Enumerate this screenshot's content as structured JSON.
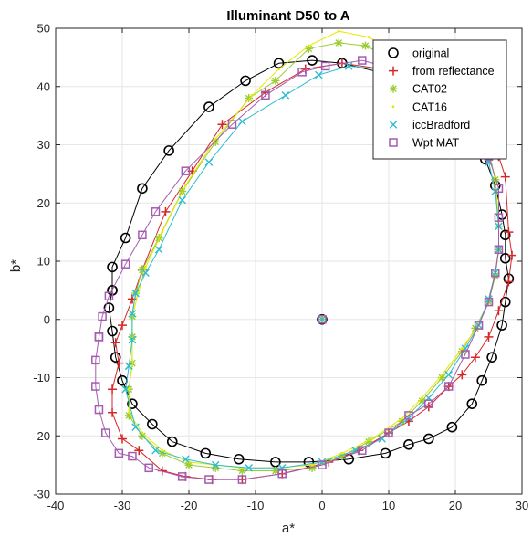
{
  "chart_data": {
    "type": "line",
    "title": "Illuminant D50 to A",
    "xlabel": "a*",
    "ylabel": "b*",
    "xlim": [
      -40,
      30
    ],
    "ylim": [
      -30,
      50
    ],
    "xticks": [
      -40,
      -30,
      -20,
      -10,
      0,
      10,
      20,
      30
    ],
    "yticks": [
      -30,
      -20,
      -10,
      0,
      10,
      20,
      30,
      40,
      50
    ],
    "grid": true,
    "legend_position": "top-right",
    "center_point": {
      "x": 0,
      "y": 0
    },
    "series": [
      {
        "name": "original",
        "color": "#000000",
        "marker": "circle",
        "points": [
          [
            -31.5,
            5
          ],
          [
            -31.5,
            9
          ],
          [
            -29.5,
            14
          ],
          [
            -27,
            22.5
          ],
          [
            -23,
            29
          ],
          [
            -17,
            36.5
          ],
          [
            -11.5,
            41
          ],
          [
            -6.5,
            44
          ],
          [
            -1.5,
            44.5
          ],
          [
            3,
            44
          ],
          [
            8.5,
            42.5
          ],
          [
            12.5,
            41
          ],
          [
            16,
            38
          ],
          [
            19.5,
            35
          ],
          [
            22,
            31
          ],
          [
            24.5,
            27.5
          ],
          [
            26,
            23
          ],
          [
            27,
            18
          ],
          [
            27.5,
            14.5
          ],
          [
            27.5,
            10.5
          ],
          [
            28,
            7
          ],
          [
            27.5,
            3
          ],
          [
            27,
            -1
          ],
          [
            25.5,
            -6.5
          ],
          [
            24,
            -10.5
          ],
          [
            22.5,
            -14.5
          ],
          [
            19.5,
            -18.5
          ],
          [
            16,
            -20.5
          ],
          [
            13,
            -21.5
          ],
          [
            9.5,
            -23
          ],
          [
            4,
            -24
          ],
          [
            -2,
            -24.5
          ],
          [
            -7,
            -24.5
          ],
          [
            -12.5,
            -24
          ],
          [
            -17.5,
            -23
          ],
          [
            -22.5,
            -21
          ],
          [
            -25.5,
            -18
          ],
          [
            -28.5,
            -14.5
          ],
          [
            -30,
            -10.5
          ],
          [
            -31,
            -6.5
          ],
          [
            -31.5,
            -2
          ],
          [
            -32,
            2
          ],
          [
            -31.5,
            5
          ]
        ]
      },
      {
        "name": "from reflectance",
        "color": "#d62728",
        "marker": "plus",
        "points": [
          [
            -28.5,
            3.5
          ],
          [
            -27,
            8.5
          ],
          [
            -23.5,
            18.5
          ],
          [
            -19.5,
            25.5
          ],
          [
            -15,
            33.5
          ],
          [
            -8.5,
            39
          ],
          [
            -2.5,
            43
          ],
          [
            3,
            44
          ],
          [
            9,
            43
          ],
          [
            13,
            41
          ],
          [
            17,
            37.5
          ],
          [
            20.5,
            35
          ],
          [
            23.5,
            31.5
          ],
          [
            26.5,
            28
          ],
          [
            27.5,
            24.5
          ],
          [
            28,
            15
          ],
          [
            28.5,
            11
          ],
          [
            28,
            6.5
          ],
          [
            26.5,
            1.5
          ],
          [
            25,
            -3
          ],
          [
            23,
            -6.5
          ],
          [
            21,
            -9.5
          ],
          [
            19,
            -11.5
          ],
          [
            16,
            -15
          ],
          [
            13,
            -17.5
          ],
          [
            10,
            -19.5
          ],
          [
            5.5,
            -22.5
          ],
          [
            1,
            -24.5
          ],
          [
            -6,
            -26.5
          ],
          [
            -12,
            -27.5
          ],
          [
            -16.5,
            -27.5
          ],
          [
            -20.5,
            -27
          ],
          [
            -24,
            -26
          ],
          [
            -27.5,
            -22.5
          ],
          [
            -30,
            -20.5
          ],
          [
            -31.5,
            -16
          ],
          [
            -31.5,
            -12
          ],
          [
            -30.5,
            -7.5
          ],
          [
            -31,
            -4
          ],
          [
            -30,
            -1
          ],
          [
            -28.5,
            3.5
          ]
        ]
      },
      {
        "name": "CAT02",
        "color": "#9acd32",
        "marker": "asterisk",
        "points": [
          [
            -28.5,
            -3
          ],
          [
            -28.5,
            0.5
          ],
          [
            -28,
            4.5
          ],
          [
            -27,
            8.5
          ],
          [
            -24.5,
            14
          ],
          [
            -21,
            22
          ],
          [
            -16,
            30.5
          ],
          [
            -11,
            38
          ],
          [
            -7,
            41
          ],
          [
            -2,
            46.5
          ],
          [
            2.5,
            47.5
          ],
          [
            6.5,
            47
          ],
          [
            11,
            44.5
          ],
          [
            15,
            42
          ],
          [
            19,
            38
          ],
          [
            22.5,
            34
          ],
          [
            25,
            29
          ],
          [
            26,
            24
          ],
          [
            26.5,
            16
          ],
          [
            26.5,
            12
          ],
          [
            26,
            7.5
          ],
          [
            25,
            3
          ],
          [
            23,
            -1.5
          ],
          [
            21,
            -5.5
          ],
          [
            18,
            -10
          ],
          [
            15,
            -14
          ],
          [
            12,
            -17.5
          ],
          [
            7,
            -21
          ],
          [
            3,
            -23.5
          ],
          [
            -1.5,
            -25.5
          ],
          [
            -7,
            -26
          ],
          [
            -12,
            -26
          ],
          [
            -16,
            -25.5
          ],
          [
            -20,
            -25
          ],
          [
            -24,
            -23
          ],
          [
            -27,
            -20
          ],
          [
            -29,
            -16.5
          ],
          [
            -29,
            -12
          ],
          [
            -28.5,
            -7.5
          ],
          [
            -28.5,
            -3
          ]
        ]
      },
      {
        "name": "CAT16",
        "color": "#e8e800",
        "marker": "dot",
        "points": [
          [
            -28.5,
            -3
          ],
          [
            -28.5,
            0.5
          ],
          [
            -27.5,
            5
          ],
          [
            -26.5,
            9
          ],
          [
            -24,
            15
          ],
          [
            -20.5,
            23
          ],
          [
            -16,
            31
          ],
          [
            -10.5,
            38.5
          ],
          [
            -6.5,
            43
          ],
          [
            -2,
            47
          ],
          [
            2.5,
            49.5
          ],
          [
            7,
            48.5
          ],
          [
            11,
            46
          ],
          [
            15,
            42.5
          ],
          [
            18.5,
            39
          ],
          [
            22,
            34.5
          ],
          [
            24.5,
            29.5
          ],
          [
            26,
            24.5
          ],
          [
            26.5,
            17
          ],
          [
            26.5,
            12.5
          ],
          [
            26,
            8
          ],
          [
            25,
            3.5
          ],
          [
            23.5,
            -1
          ],
          [
            21,
            -5
          ],
          [
            18,
            -9.5
          ],
          [
            15,
            -13.5
          ],
          [
            12,
            -17
          ],
          [
            7.5,
            -20.5
          ],
          [
            3,
            -23
          ],
          [
            -1.5,
            -25
          ],
          [
            -7,
            -25.5
          ],
          [
            -12,
            -25.5
          ],
          [
            -16,
            -25
          ],
          [
            -20,
            -24.5
          ],
          [
            -24,
            -22.5
          ],
          [
            -27,
            -19.5
          ],
          [
            -29,
            -16
          ],
          [
            -29,
            -12
          ],
          [
            -28.5,
            -7.5
          ],
          [
            -28.5,
            -3
          ]
        ]
      },
      {
        "name": "iccBradford",
        "color": "#2fbccf",
        "marker": "cross",
        "points": [
          [
            -29,
            -8
          ],
          [
            -28.5,
            -3.5
          ],
          [
            -28.5,
            1
          ],
          [
            -28,
            4.5
          ],
          [
            -26.5,
            8
          ],
          [
            -24.5,
            12
          ],
          [
            -21,
            20.5
          ],
          [
            -17,
            27
          ],
          [
            -12,
            34
          ],
          [
            -5.5,
            38.5
          ],
          [
            -0.5,
            42
          ],
          [
            4,
            43.5
          ],
          [
            8.5,
            43
          ],
          [
            12,
            42
          ],
          [
            16,
            38.5
          ],
          [
            19.5,
            35
          ],
          [
            22.5,
            31
          ],
          [
            25,
            27
          ],
          [
            26,
            22
          ],
          [
            26.5,
            16
          ],
          [
            26.5,
            12
          ],
          [
            26,
            8
          ],
          [
            25,
            3.5
          ],
          [
            23.5,
            -1
          ],
          [
            21.5,
            -5
          ],
          [
            19,
            -9.5
          ],
          [
            16,
            -13.5
          ],
          [
            13,
            -17
          ],
          [
            9,
            -20.5
          ],
          [
            5,
            -22.5
          ],
          [
            0,
            -24.5
          ],
          [
            -6,
            -25.5
          ],
          [
            -11,
            -25.5
          ],
          [
            -16,
            -25
          ],
          [
            -20.5,
            -24
          ],
          [
            -25,
            -22.5
          ],
          [
            -28,
            -18.5
          ],
          [
            -29.5,
            -12
          ],
          [
            -29,
            -8
          ]
        ]
      },
      {
        "name": "Wpt MAT",
        "color": "#a35cb0",
        "marker": "square",
        "points": [
          [
            -33.5,
            -3
          ],
          [
            -33,
            0.5
          ],
          [
            -32,
            4
          ],
          [
            -29.5,
            9.5
          ],
          [
            -27,
            14.5
          ],
          [
            -25,
            18.5
          ],
          [
            -20.5,
            25.5
          ],
          [
            -13.5,
            33.5
          ],
          [
            -8.5,
            38.5
          ],
          [
            -3,
            42.5
          ],
          [
            0.5,
            43.5
          ],
          [
            6,
            44.5
          ],
          [
            11,
            43
          ],
          [
            15,
            40.5
          ],
          [
            19,
            37
          ],
          [
            22.5,
            32.5
          ],
          [
            25,
            28
          ],
          [
            26.5,
            22.5
          ],
          [
            26.5,
            17.5
          ],
          [
            26.5,
            12
          ],
          [
            26,
            8
          ],
          [
            25,
            3
          ],
          [
            23.5,
            -1
          ],
          [
            21.5,
            -6
          ],
          [
            19,
            -11.5
          ],
          [
            16,
            -14.5
          ],
          [
            13,
            -16.5
          ],
          [
            10,
            -19.5
          ],
          [
            6,
            -22.5
          ],
          [
            0,
            -25
          ],
          [
            -6,
            -26.5
          ],
          [
            -12,
            -27.5
          ],
          [
            -17,
            -27.5
          ],
          [
            -21,
            -27
          ],
          [
            -26,
            -25.5
          ],
          [
            -28.5,
            -23.5
          ],
          [
            -30.5,
            -23
          ],
          [
            -32.5,
            -19.5
          ],
          [
            -33.5,
            -15.5
          ],
          [
            -34,
            -11.5
          ],
          [
            -34,
            -7
          ],
          [
            -33.5,
            -3
          ]
        ]
      }
    ]
  }
}
